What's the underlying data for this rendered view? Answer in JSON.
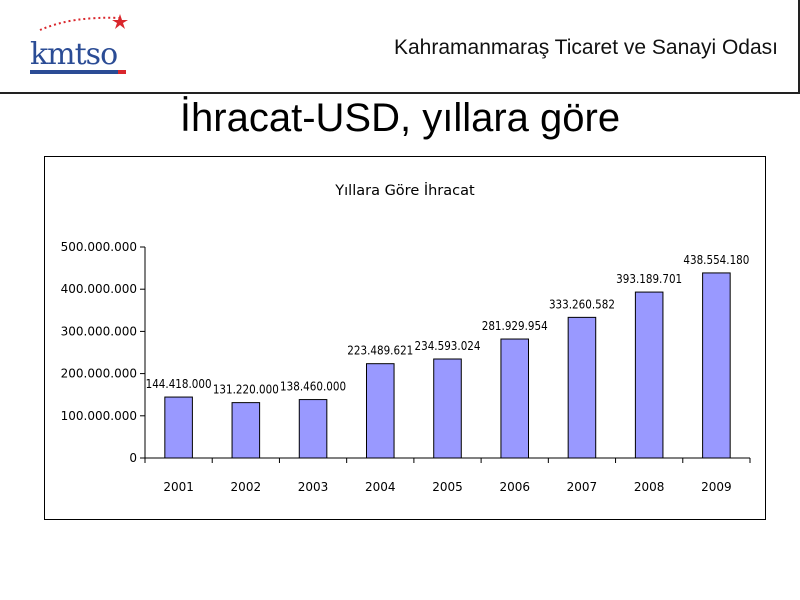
{
  "header": {
    "org_name": "Kahramanmaraş Ticaret ve Sanayi Odası",
    "logo_text": "kmtso",
    "logo_icon": "kmtso-logo"
  },
  "slide": {
    "title": "İhracat-USD, yıllara göre"
  },
  "colors": {
    "bar_fill": "#9999ff",
    "bar_stroke": "#000000",
    "logo_blue": "#2b4c95",
    "logo_red": "#d9262c"
  },
  "chart_data": {
    "type": "bar",
    "title": "Yıllara Göre İhracat",
    "categories": [
      "2001",
      "2002",
      "2003",
      "2004",
      "2005",
      "2006",
      "2007",
      "2008",
      "2009"
    ],
    "values": [
      144418000,
      131220000,
      138460000,
      223489621,
      234593024,
      281929954,
      333260582,
      393189701,
      438554180
    ],
    "data_labels": [
      "144.418.000",
      "131.220.000",
      "138.460.000",
      "223.489.621",
      "234.593.024",
      "281.929.954",
      "333.260.582",
      "393.189.701",
      "438.554.180"
    ],
    "y_ticks": [
      0,
      100000000,
      200000000,
      300000000,
      400000000,
      500000000
    ],
    "y_tick_labels": [
      "0",
      "100.000.000",
      "200.000.000",
      "300.000.000",
      "400.000.000",
      "500.000.000"
    ],
    "ylim": [
      0,
      500000000
    ],
    "xlabel": "",
    "ylabel": "",
    "grid": false,
    "legend": "none"
  }
}
